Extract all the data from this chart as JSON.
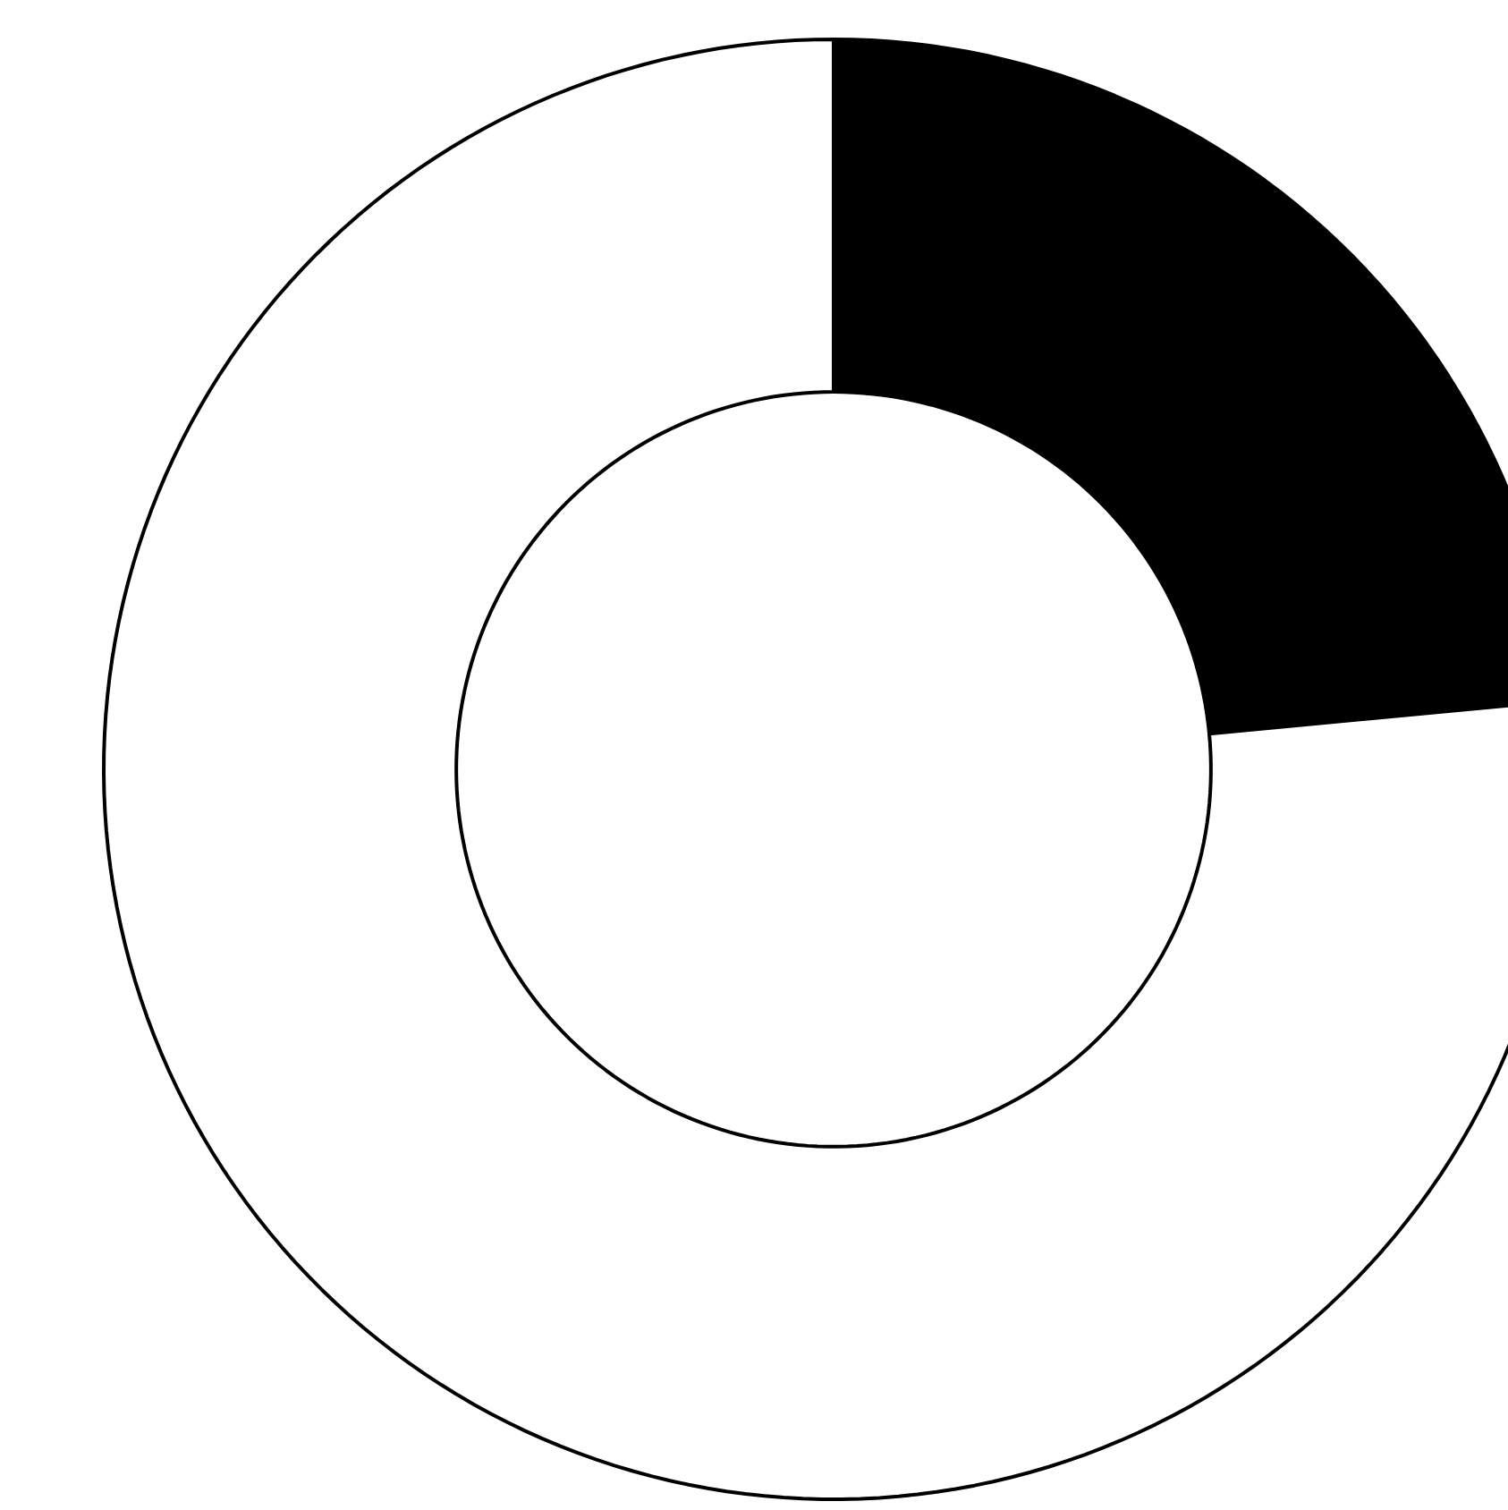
{
  "chart_data": {
    "type": "donut",
    "categories": [
      null,
      null
    ],
    "values": [
      23.5,
      76.5
    ],
    "colors": [
      "#000000",
      "#ffffff"
    ]
  }
}
